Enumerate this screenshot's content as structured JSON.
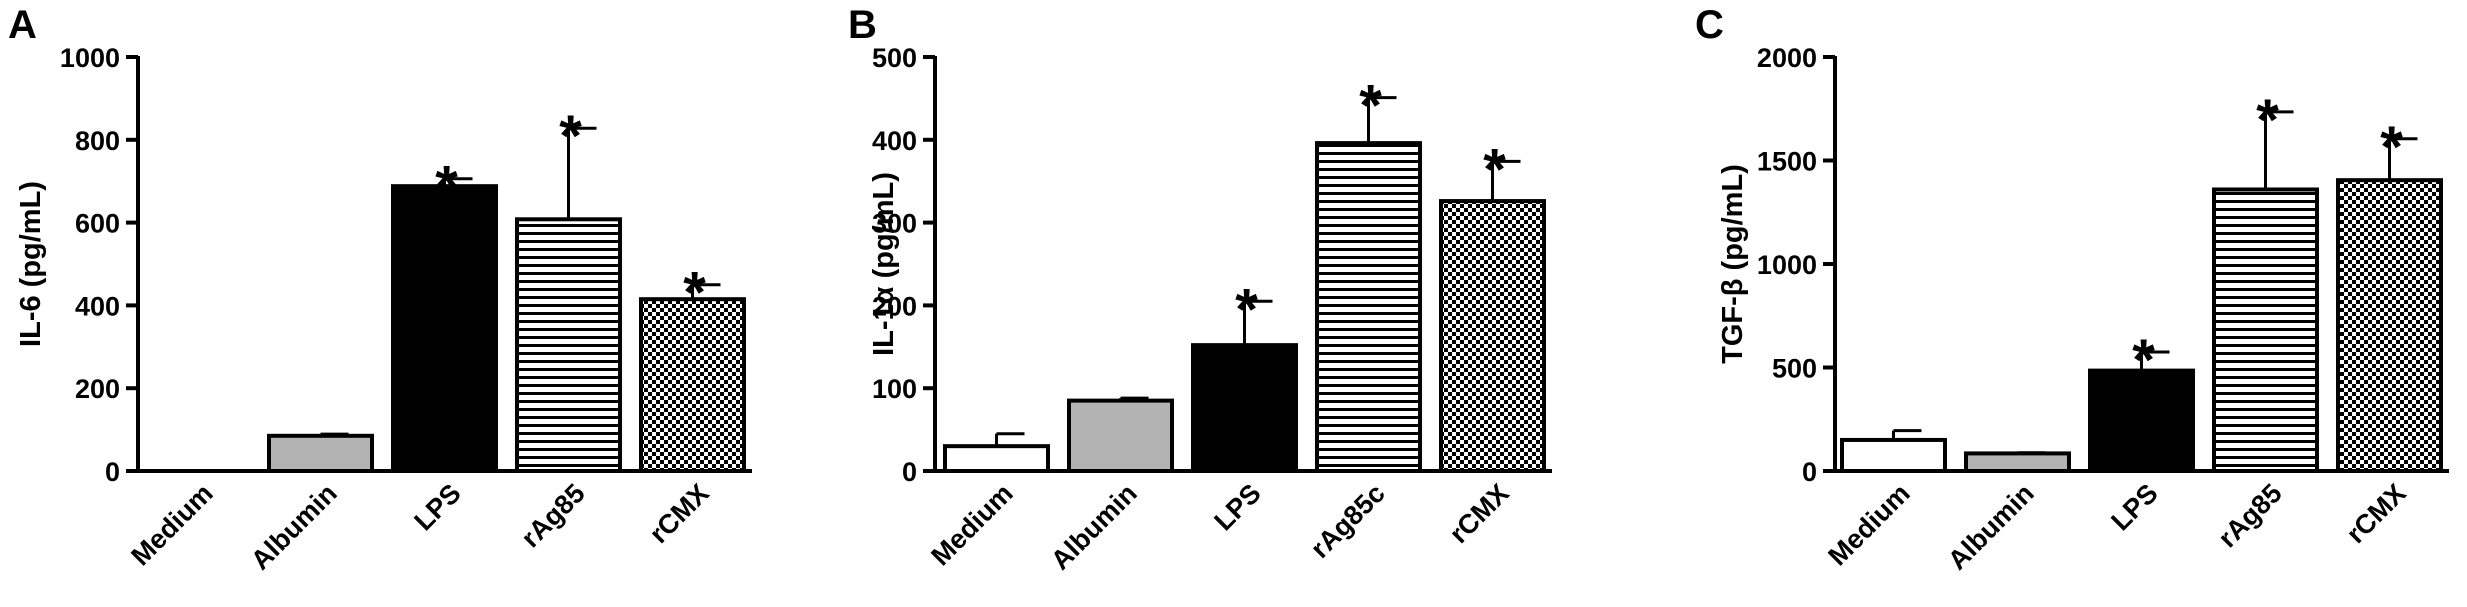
{
  "chart_data": [
    {
      "type": "bar",
      "panel_label": "A",
      "ylabel": "IL-6 (pg/mL)",
      "ylim": [
        0,
        1000
      ],
      "yticks": [
        0,
        200,
        400,
        600,
        800,
        1000
      ],
      "categories": [
        "Medium",
        "Albumin",
        "LPS",
        "rAg85",
        "rCMX"
      ],
      "values": [
        0,
        85,
        688,
        608,
        415
      ],
      "errors": [
        0,
        4,
        18,
        220,
        35
      ],
      "significant": [
        false,
        false,
        true,
        true,
        true
      ],
      "significance_marker": "*",
      "fills": [
        "white",
        "gray",
        "black",
        "horizontal-lines",
        "checkered"
      ]
    },
    {
      "type": "bar",
      "panel_label": "B",
      "ylabel": "IL-1α (pg/mL)",
      "ylim": [
        0,
        500
      ],
      "yticks": [
        0,
        100,
        200,
        300,
        400,
        500
      ],
      "categories": [
        "Medium",
        "Albumin",
        "LPS",
        "rAg85c",
        "rCMX"
      ],
      "values": [
        30,
        85,
        152,
        396,
        326
      ],
      "errors": [
        15,
        3,
        53,
        55,
        48
      ],
      "significant": [
        false,
        false,
        true,
        true,
        true
      ],
      "significance_marker": "*",
      "fills": [
        "white",
        "gray",
        "black",
        "horizontal-lines",
        "checkered"
      ]
    },
    {
      "type": "bar",
      "panel_label": "C",
      "ylabel": "TGF-β (pg/mL)",
      "ylim": [
        0,
        2000
      ],
      "yticks": [
        0,
        500,
        1000,
        1500,
        2000
      ],
      "categories": [
        "Medium",
        "Albumin",
        "LPS",
        "rAg85",
        "rCMX"
      ],
      "values": [
        150,
        85,
        485,
        1360,
        1405
      ],
      "errors": [
        45,
        3,
        90,
        375,
        200
      ],
      "significant": [
        false,
        false,
        true,
        true,
        true
      ],
      "significance_marker": "*",
      "fills": [
        "white",
        "gray",
        "black",
        "horizontal-lines",
        "checkered"
      ]
    }
  ]
}
